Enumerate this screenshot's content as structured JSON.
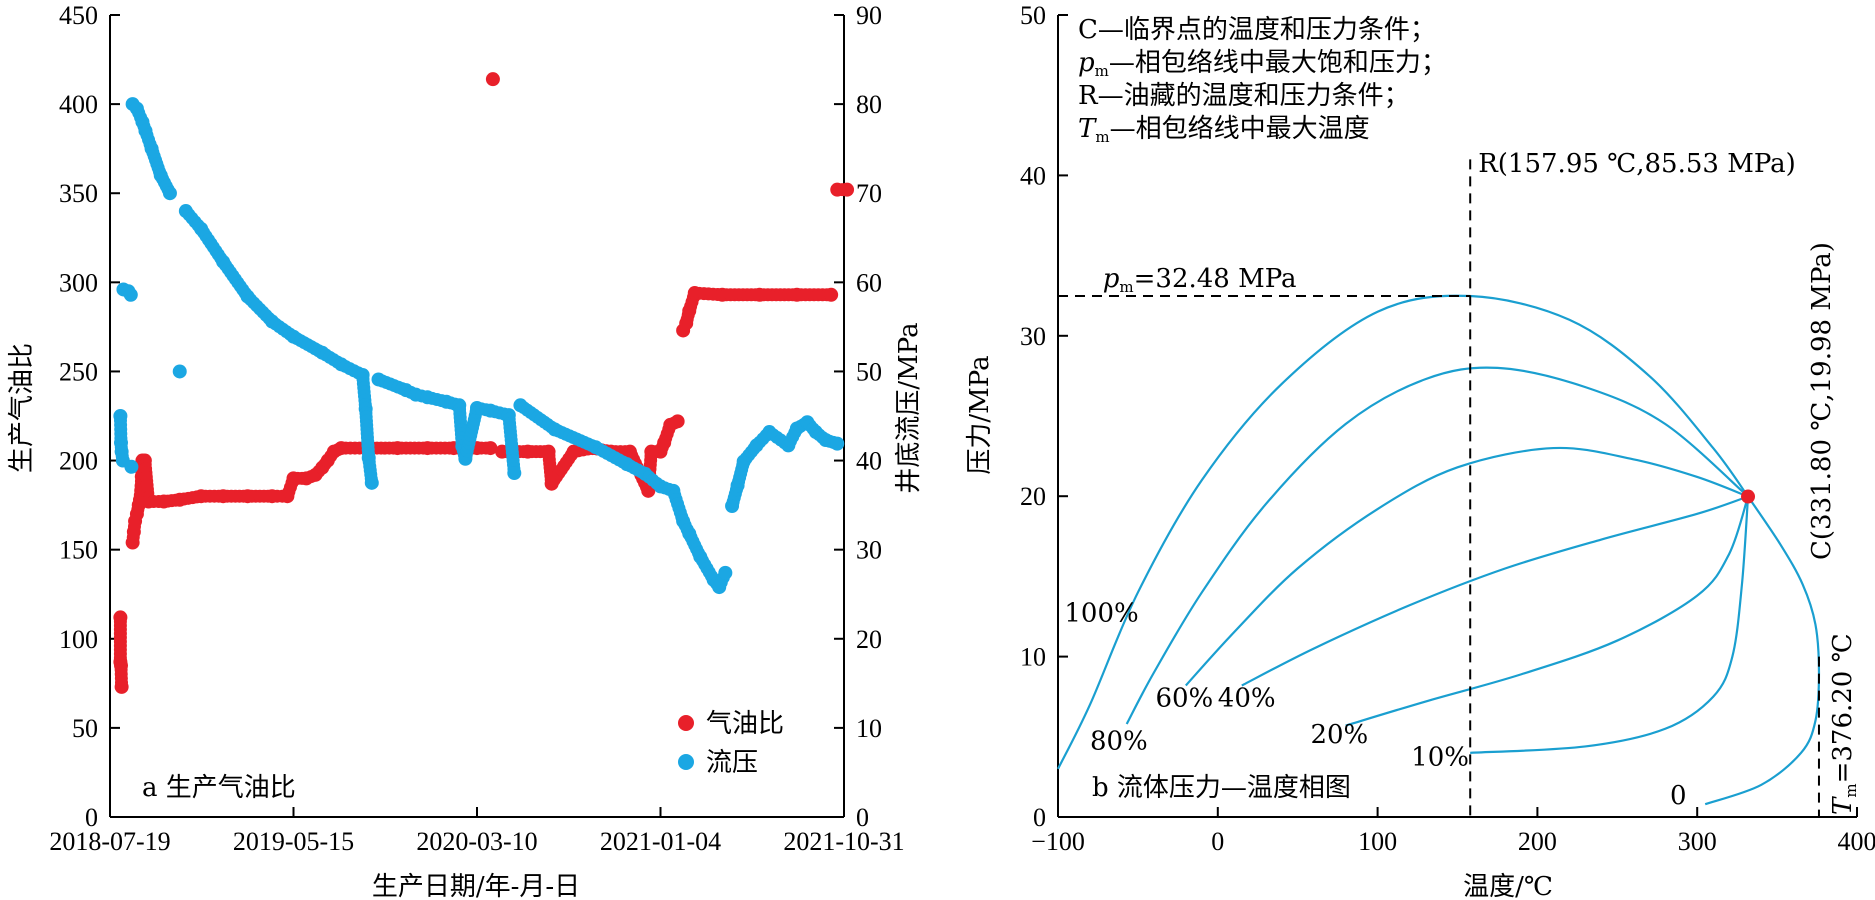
{
  "chart_data": [
    {
      "type": "scatter",
      "panel_label": "a 生产气油比",
      "xlabel": "生产日期/年-月-日",
      "x_tick_labels": [
        "2018-07-19",
        "2019-05-15",
        "2020-03-10",
        "2021-01-04",
        "2021-10-31"
      ],
      "x_ticks": [
        "2018-07-19",
        "2019-05-15",
        "2020-03-10",
        "2021-01-04",
        "2021-10-31"
      ],
      "ylabel_left": "生产气油比",
      "ylim_left": [
        0,
        450
      ],
      "y_ticks_left": [
        0,
        50,
        100,
        150,
        200,
        250,
        300,
        350,
        400,
        450
      ],
      "ylabel_right": "井底流压/MPa",
      "ylim_right": [
        0,
        90
      ],
      "y_ticks_right": [
        0,
        10,
        20,
        30,
        40,
        50,
        60,
        70,
        80,
        90
      ],
      "legend_position": "bottom-right",
      "colors": {
        "gor": "#e8202a",
        "pressure": "#1ba7e3"
      },
      "series": [
        {
          "name": "气油比",
          "axis": "left",
          "points": [
            [
              "2018-08-05",
              112
            ],
            [
              "2018-08-05",
              87
            ],
            [
              "2018-08-06",
              85
            ],
            [
              "2018-08-07",
              73
            ],
            [
              "2018-08-25",
              154
            ],
            [
              "2018-08-27",
              160
            ],
            [
              "2018-08-29",
              166
            ],
            [
              "2018-09-01",
              170
            ],
            [
              "2018-09-04",
              175
            ],
            [
              "2018-09-06",
              178
            ],
            [
              "2018-09-09",
              191
            ],
            [
              "2018-09-10",
              200
            ],
            [
              "2018-09-14",
              200
            ],
            [
              "2018-09-20",
              177
            ],
            [
              "2018-10-15",
              177
            ],
            [
              "2018-11-10",
              178
            ],
            [
              "2018-12-15",
              180
            ],
            [
              "2019-01-20",
              180
            ],
            [
              "2019-03-01",
              180
            ],
            [
              "2019-04-10",
              180
            ],
            [
              "2019-05-05",
              180
            ],
            [
              "2019-05-15",
              190
            ],
            [
              "2019-06-05",
              190
            ],
            [
              "2019-06-20",
              192
            ],
            [
              "2019-07-01",
              196
            ],
            [
              "2019-07-10",
              200
            ],
            [
              "2019-07-20",
              205
            ],
            [
              "2019-08-01",
              207
            ],
            [
              "2019-09-15",
              207
            ],
            [
              "2019-11-01",
              207
            ],
            [
              "2019-12-20",
              207
            ],
            [
              "2020-02-01",
              207
            ],
            [
              "2020-03-10",
              207
            ],
            [
              "2020-04-01",
              207
            ],
            [
              "2020-04-05",
              414
            ],
            [
              "2020-04-20",
              205
            ],
            [
              "2020-06-01",
              205
            ],
            [
              "2020-07-05",
              205
            ],
            [
              "2020-07-10",
              187
            ],
            [
              "2020-08-15",
              205
            ],
            [
              "2020-09-15",
              207
            ],
            [
              "2020-10-15",
              205
            ],
            [
              "2020-11-15",
              205
            ],
            [
              "2020-12-15",
              183
            ],
            [
              "2020-12-20",
              205
            ],
            [
              "2021-01-04",
              205
            ],
            [
              "2021-01-10",
              210
            ],
            [
              "2021-01-20",
              220
            ],
            [
              "2021-02-01",
              222
            ],
            [
              "2021-02-10",
              273
            ],
            [
              "2021-02-15",
              277
            ],
            [
              "2021-02-20",
              284
            ],
            [
              "2021-03-01",
              294
            ],
            [
              "2021-04-15",
              293
            ],
            [
              "2021-06-15",
              293
            ],
            [
              "2021-08-15",
              293
            ],
            [
              "2021-10-10",
              293
            ],
            [
              "2021-10-20",
              352
            ],
            [
              "2021-11-05",
              352
            ]
          ]
        },
        {
          "name": "流压",
          "axis": "right",
          "points": [
            [
              "2018-08-05",
              45
            ],
            [
              "2018-08-06",
              42
            ],
            [
              "2018-08-07",
              41
            ],
            [
              "2018-08-09",
              40
            ],
            [
              "2018-08-10",
              59.2
            ],
            [
              "2018-08-18",
              59
            ],
            [
              "2018-08-22",
              58.6
            ],
            [
              "2018-08-23",
              39.3
            ],
            [
              "2018-08-25",
              80
            ],
            [
              "2018-09-01",
              79.5
            ],
            [
              "2018-09-10",
              78
            ],
            [
              "2018-09-15",
              77
            ],
            [
              "2018-09-25",
              75
            ],
            [
              "2018-10-10",
              72
            ],
            [
              "2018-10-25",
              70
            ],
            [
              "2018-11-10",
              50
            ],
            [
              "2018-11-20",
              68
            ],
            [
              "2018-12-15",
              66
            ],
            [
              "2019-01-20",
              62.3
            ],
            [
              "2019-03-01",
              58.4
            ],
            [
              "2019-04-10",
              55.6
            ],
            [
              "2019-05-15",
              53.9
            ],
            [
              "2019-07-01",
              52.1
            ],
            [
              "2019-08-01",
              50.8
            ],
            [
              "2019-09-05",
              49.6
            ],
            [
              "2019-09-10",
              45.8
            ],
            [
              "2019-09-15",
              40.3
            ],
            [
              "2019-09-20",
              37.5
            ],
            [
              "2019-10-01",
              49.1
            ],
            [
              "2019-11-15",
              47.9
            ],
            [
              "2019-12-01",
              47.4
            ],
            [
              "2019-12-20",
              47.1
            ],
            [
              "2020-01-20",
              46.6
            ],
            [
              "2020-02-10",
              46.2
            ],
            [
              "2020-02-15",
              41.6
            ],
            [
              "2020-02-20",
              40.2
            ],
            [
              "2020-03-10",
              45.9
            ],
            [
              "2020-04-01",
              45.6
            ],
            [
              "2020-05-01",
              45.1
            ],
            [
              "2020-05-10",
              38.6
            ],
            [
              "2020-05-20",
              46.2
            ],
            [
              "2020-07-15",
              43.5
            ],
            [
              "2020-09-20",
              41.5
            ],
            [
              "2020-11-10",
              39.6
            ],
            [
              "2020-12-10",
              38.5
            ],
            [
              "2021-01-04",
              37.1
            ],
            [
              "2021-01-25",
              36.6
            ],
            [
              "2021-02-10",
              33.2
            ],
            [
              "2021-02-20",
              31.8
            ],
            [
              "2021-03-10",
              29.2
            ],
            [
              "2021-04-01",
              26.6
            ],
            [
              "2021-04-10",
              25.8
            ],
            [
              "2021-04-20",
              27.4
            ],
            [
              "2021-05-01",
              34.9
            ],
            [
              "2021-05-10",
              37.2
            ],
            [
              "2021-05-20",
              39.9
            ],
            [
              "2021-06-10",
              41.7
            ],
            [
              "2021-07-01",
              43.2
            ],
            [
              "2021-08-01",
              41.7
            ],
            [
              "2021-08-15",
              43.6
            ],
            [
              "2021-09-01",
              44.3
            ],
            [
              "2021-09-15",
              43.2
            ],
            [
              "2021-10-01",
              42.3
            ],
            [
              "2021-10-20",
              41.9
            ]
          ]
        }
      ]
    },
    {
      "type": "line",
      "panel_label": "b 流体压力—温度相图",
      "xlabel": "温度/℃",
      "ylabel": "压力/MPa",
      "xlim": [
        -100,
        400
      ],
      "ylim": [
        0,
        50
      ],
      "x_ticks": [
        -100,
        0,
        100,
        200,
        300,
        400
      ],
      "x_tick_labels": [
        "−100",
        "0",
        "100",
        "200",
        "300",
        "400"
      ],
      "y_ticks": [
        0,
        10,
        20,
        30,
        40,
        50
      ],
      "notes": [
        "C—临界点的温度和压力条件；",
        "pm—相包络线中最大饱和压力；",
        "R—油藏的温度和压力条件；",
        "Tm—相包络线中最大温度"
      ],
      "annotations": {
        "R_label": "R(157.95 ℃,85.53 MPa)",
        "R_temperature": 157.95,
        "pm_label": "pm=32.48 MPa",
        "pm_value": 32.48,
        "C_label": "C(331.80 ℃,19.98 MPa)",
        "C_point": [
          331.8,
          19.98
        ],
        "Tm_label": "Tm=376.20 ℃",
        "Tm_value": 376.2
      },
      "critical_point_color": "#e8202a",
      "curve_color": "#1a9fd0",
      "series": [
        {
          "label": "100%",
          "points": [
            [
              -100,
              3
            ],
            [
              -80,
              7
            ],
            [
              -50,
              14
            ],
            [
              -10,
              21
            ],
            [
              40,
              27
            ],
            [
              100,
              31.5
            ],
            [
              157.95,
              32.48
            ],
            [
              220,
              31
            ],
            [
              270,
              27.5
            ],
            [
              310,
              23
            ],
            [
              331.8,
              19.98
            ]
          ]
        },
        {
          "label": "80%",
          "points": [
            [
              -57,
              5.8
            ],
            [
              -40,
              9
            ],
            [
              -10,
              14
            ],
            [
              30,
              19.5
            ],
            [
              80,
              24.5
            ],
            [
              130,
              27.3
            ],
            [
              175,
              28
            ],
            [
              230,
              26.8
            ],
            [
              280,
              24.5
            ],
            [
              331.8,
              19.98
            ]
          ]
        },
        {
          "label": "60%",
          "points": [
            [
              -20,
              8.2
            ],
            [
              10,
              11.5
            ],
            [
              50,
              15.5
            ],
            [
              100,
              19.2
            ],
            [
              150,
              21.8
            ],
            [
              210,
              23
            ],
            [
              260,
              22.3
            ],
            [
              300,
              21.2
            ],
            [
              331.8,
              19.98
            ]
          ]
        },
        {
          "label": "40%",
          "points": [
            [
              15,
              8.2
            ],
            [
              60,
              10.5
            ],
            [
              120,
              13.2
            ],
            [
              180,
              15.5
            ],
            [
              240,
              17.3
            ],
            [
              300,
              18.9
            ],
            [
              331.8,
              19.98
            ]
          ]
        },
        {
          "label": "20%",
          "points": [
            [
              80,
              5.7
            ],
            [
              130,
              7.2
            ],
            [
              190,
              8.9
            ],
            [
              250,
              11
            ],
            [
              300,
              13.8
            ],
            [
              320,
              16.4
            ],
            [
              331.8,
              19.98
            ]
          ]
        },
        {
          "label": "10%",
          "points": [
            [
              157.95,
              4
            ],
            [
              230,
              4.4
            ],
            [
              280,
              5.5
            ],
            [
              310,
              7.5
            ],
            [
              322,
              10
            ],
            [
              328,
              14.5
            ],
            [
              331.8,
              19.98
            ]
          ]
        },
        {
          "label": "0",
          "points": [
            [
              305,
              0.8
            ],
            [
              340,
              2
            ],
            [
              365,
              4
            ],
            [
              374,
              6
            ],
            [
              376.2,
              9
            ],
            [
              374,
              12
            ],
            [
              366,
              14.5
            ],
            [
              352,
              17
            ],
            [
              331.8,
              19.98
            ]
          ]
        }
      ],
      "curve_labels": [
        {
          "text": "100%",
          "at": [
            -96,
            12.2
          ]
        },
        {
          "text": "80%",
          "at": [
            -80,
            4.2
          ]
        },
        {
          "text": "60%",
          "at": [
            -39,
            6.9
          ]
        },
        {
          "text": "40%",
          "at": [
            0,
            6.9
          ]
        },
        {
          "text": "20%",
          "at": [
            58,
            4.6
          ]
        },
        {
          "text": "10%",
          "at": [
            121,
            3.2
          ]
        },
        {
          "text": "0",
          "at": [
            283,
            0.8
          ]
        }
      ]
    }
  ]
}
